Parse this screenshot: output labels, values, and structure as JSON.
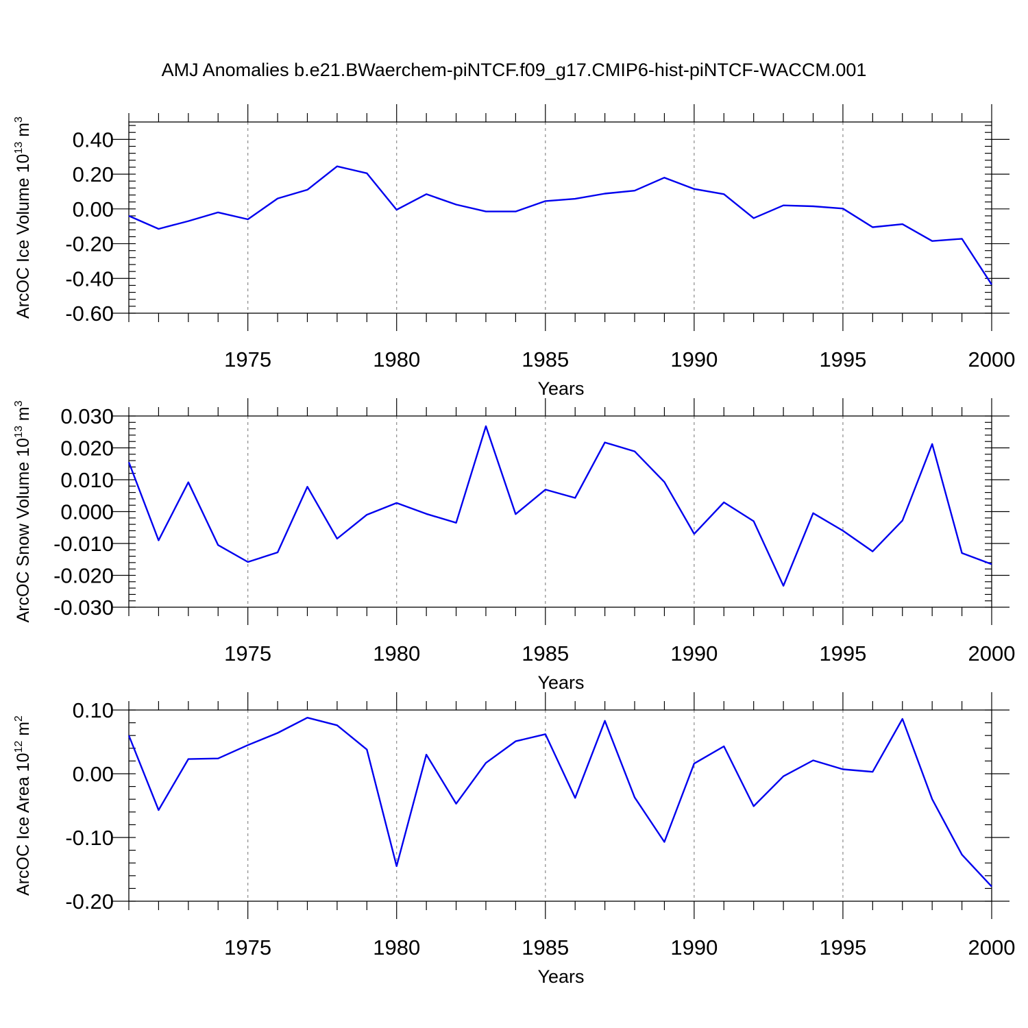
{
  "title": "AMJ Anomalies b.e21.BWaerchem-piNTCF.f09_g17.CMIP6-hist-piNTCF-WACCM.001",
  "chart_data": [
    {
      "type": "line",
      "ylabel": "ArcOC Ice Volume 10",
      "ylabel_sup": "13",
      "ylabel_unit": " m",
      "ylabel_unit_sup": "3",
      "xlabel": "Years",
      "xlim": [
        1971,
        2000
      ],
      "ylim": [
        -0.6,
        0.5
      ],
      "yticks": [
        0.4,
        0.2,
        0.0,
        -0.2,
        -0.4,
        -0.6
      ],
      "ytick_labels": [
        "0.40",
        "0.20",
        "0.00",
        "-0.20",
        "-0.40",
        "-0.60"
      ],
      "xticks": [
        1975,
        1980,
        1985,
        1990,
        1995,
        2000
      ],
      "xtick_labels": [
        "1975",
        "1980",
        "1985",
        "1990",
        "1995",
        "2000"
      ],
      "color": "#0000ee",
      "x": [
        1971,
        1972,
        1973,
        1974,
        1975,
        1976,
        1977,
        1978,
        1979,
        1980,
        1981,
        1982,
        1983,
        1984,
        1985,
        1986,
        1987,
        1988,
        1989,
        1990,
        1991,
        1992,
        1993,
        1994,
        1995,
        1996,
        1997,
        1998,
        1999,
        2000
      ],
      "values": [
        -0.04,
        -0.115,
        -0.07,
        -0.02,
        -0.06,
        0.06,
        0.11,
        0.245,
        0.205,
        -0.005,
        0.085,
        0.025,
        -0.015,
        -0.015,
        0.045,
        0.058,
        0.088,
        0.105,
        0.18,
        0.115,
        0.085,
        -0.053,
        0.02,
        0.015,
        0.002,
        -0.105,
        -0.088,
        -0.185,
        -0.172,
        -0.435
      ]
    },
    {
      "type": "line",
      "ylabel": "ArcOC Snow Volume 10",
      "ylabel_sup": "13",
      "ylabel_unit": " m",
      "ylabel_unit_sup": "3",
      "xlabel": "Years",
      "xlim": [
        1971,
        2000
      ],
      "ylim": [
        -0.03,
        0.03
      ],
      "yticks": [
        0.03,
        0.02,
        0.01,
        0.0,
        -0.01,
        -0.02,
        -0.03
      ],
      "ytick_labels": [
        "0.030",
        "0.020",
        "0.010",
        "0.000",
        "-0.010",
        "-0.020",
        "-0.030"
      ],
      "xticks": [
        1975,
        1980,
        1985,
        1990,
        1995,
        2000
      ],
      "xtick_labels": [
        "1975",
        "1980",
        "1985",
        "1990",
        "1995",
        "2000"
      ],
      "color": "#0000ee",
      "x": [
        1971,
        1972,
        1973,
        1974,
        1975,
        1976,
        1977,
        1978,
        1979,
        1980,
        1981,
        1982,
        1983,
        1984,
        1985,
        1986,
        1987,
        1988,
        1989,
        1990,
        1991,
        1992,
        1993,
        1994,
        1995,
        1996,
        1997,
        1998,
        1999,
        2000
      ],
      "values": [
        0.0155,
        -0.009,
        0.0092,
        -0.0105,
        -0.0158,
        -0.0128,
        0.0078,
        -0.0085,
        -0.001,
        0.0027,
        -0.0007,
        -0.0035,
        0.0268,
        -0.0008,
        0.0069,
        0.0043,
        0.0217,
        0.0189,
        0.0093,
        -0.007,
        0.0029,
        -0.003,
        -0.0233,
        -0.0005,
        -0.006,
        -0.0125,
        -0.0028,
        0.0212,
        -0.013,
        -0.0165
      ]
    },
    {
      "type": "line",
      "ylabel": "ArcOC Ice Area 10",
      "ylabel_sup": "12",
      "ylabel_unit": " m",
      "ylabel_unit_sup": "2",
      "xlabel": "Years",
      "xlim": [
        1971,
        2000
      ],
      "ylim": [
        -0.2,
        0.1
      ],
      "yticks": [
        0.1,
        0.0,
        -0.1,
        -0.2
      ],
      "ytick_labels": [
        "0.10",
        "0.00",
        "-0.10",
        "-0.20"
      ],
      "xticks": [
        1975,
        1980,
        1985,
        1990,
        1995,
        2000
      ],
      "xtick_labels": [
        "1975",
        "1980",
        "1985",
        "1990",
        "1995",
        "2000"
      ],
      "color": "#0000ee",
      "x": [
        1971,
        1972,
        1973,
        1974,
        1975,
        1976,
        1977,
        1978,
        1979,
        1980,
        1981,
        1982,
        1983,
        1984,
        1985,
        1986,
        1987,
        1988,
        1989,
        1990,
        1991,
        1992,
        1993,
        1994,
        1995,
        1996,
        1997,
        1998,
        1999,
        2000
      ],
      "values": [
        0.06,
        -0.057,
        0.023,
        0.024,
        0.045,
        0.064,
        0.088,
        0.076,
        0.038,
        -0.145,
        0.03,
        -0.047,
        0.017,
        0.051,
        0.062,
        -0.038,
        0.083,
        -0.037,
        -0.107,
        0.016,
        0.043,
        -0.051,
        -0.004,
        0.021,
        0.007,
        0.003,
        0.086,
        -0.04,
        -0.127,
        -0.177
      ]
    }
  ]
}
